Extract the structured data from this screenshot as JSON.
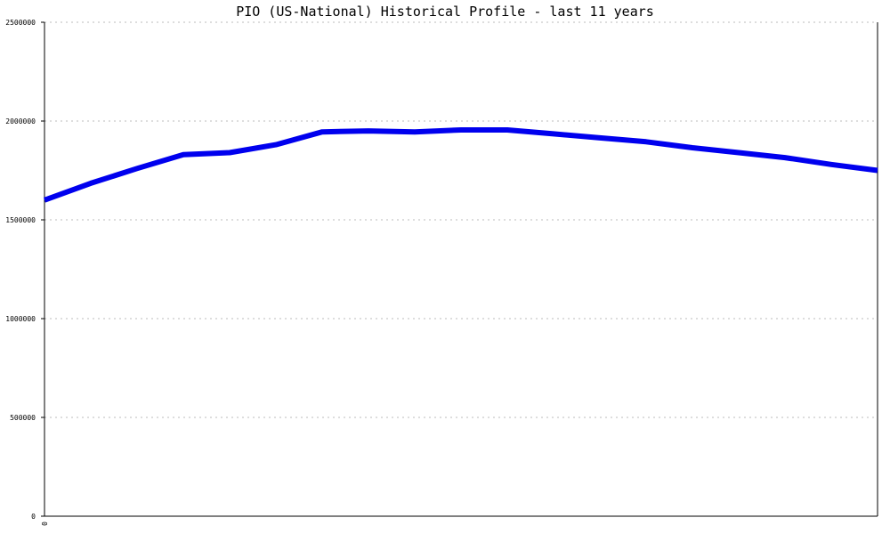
{
  "colors": {
    "line": "#0000ee",
    "axis": "#000000",
    "grid": "#bbbbbb",
    "background": "#ffffff"
  },
  "chart_data": {
    "type": "line",
    "title": "PIO (US-National) Historical Profile - last 11 years",
    "xlabel": "",
    "ylabel": "",
    "x_tick_labels": [
      "0"
    ],
    "y_ticks": [
      0,
      500000,
      1000000,
      1500000,
      2000000,
      2500000
    ],
    "y_tick_labels": [
      "0",
      "500000",
      "1000000",
      "1500000",
      "2000000",
      "2500000"
    ],
    "ylim": [
      0,
      2500000
    ],
    "grid": "horizontal dotted",
    "series": [
      {
        "x": [
          0,
          1,
          2,
          3,
          4,
          5,
          6,
          7,
          8,
          9,
          10,
          11,
          12,
          13,
          14,
          15,
          16,
          17,
          18
        ],
        "values": [
          1600000,
          1685000,
          1760000,
          1830000,
          1840000,
          1880000,
          1945000,
          1950000,
          1945000,
          1955000,
          1955000,
          1935000,
          1915000,
          1895000,
          1865000,
          1840000,
          1815000,
          1780000,
          1750000
        ]
      }
    ]
  }
}
